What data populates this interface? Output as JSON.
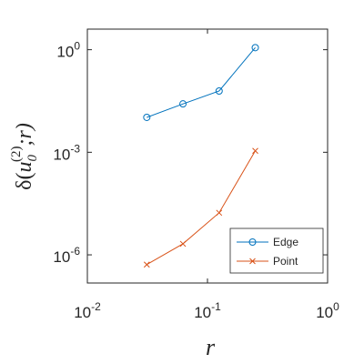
{
  "chart_data": {
    "type": "line",
    "xscale": "log",
    "yscale": "log",
    "xlim": [
      0.01,
      1
    ],
    "ylim": [
      1.5e-07,
      4
    ],
    "xlabel": "r",
    "ylabel": "δ(u0(2);r)",
    "ylabel_parts": {
      "prefix": "δ(",
      "base": "u",
      "sub": "0",
      "sup": "(2)",
      "suffix": ";r)"
    },
    "xticks": [
      {
        "value": 0.01,
        "base": "10",
        "exp": "-2"
      },
      {
        "value": 0.1,
        "base": "10",
        "exp": "-1"
      },
      {
        "value": 1,
        "base": "10",
        "exp": "0"
      }
    ],
    "yticks": [
      {
        "value": 1e-06,
        "base": "10",
        "exp": "-6"
      },
      {
        "value": 0.001,
        "base": "10",
        "exp": "-3"
      },
      {
        "value": 1,
        "base": "10",
        "exp": "0"
      }
    ],
    "grid": false,
    "legend": "bottom-right",
    "series": [
      {
        "name": "Edge",
        "color": "#0072BD",
        "marker": "circle",
        "x": [
          0.03125,
          0.0625,
          0.125,
          0.25
        ],
        "y": [
          0.0105,
          0.026,
          0.062,
          1.15
        ]
      },
      {
        "name": "Point",
        "color": "#D95319",
        "marker": "x",
        "x": [
          0.03125,
          0.0625,
          0.125,
          0.25
        ],
        "y": [
          5.2e-07,
          2.1e-06,
          1.7e-05,
          0.0011
        ]
      }
    ]
  }
}
